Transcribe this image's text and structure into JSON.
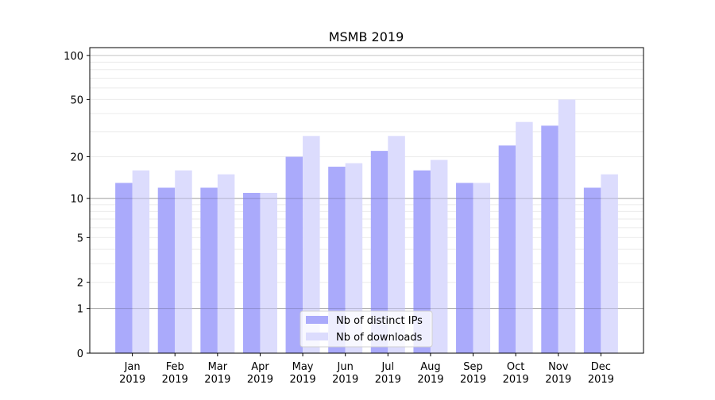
{
  "chart_data": {
    "type": "bar",
    "title": "MSMB 2019",
    "xlabel": "",
    "ylabel": "",
    "y_scale": "log(y+1)",
    "ylim": [
      0,
      113
    ],
    "yticks": [
      0,
      1,
      2,
      5,
      10,
      20,
      50,
      100
    ],
    "grid": true,
    "legend_position": "bottom-center",
    "categories": [
      "Jan\n2019",
      "Feb\n2019",
      "Mar\n2019",
      "Apr\n2019",
      "May\n2019",
      "Jun\n2019",
      "Jul\n2019",
      "Aug\n2019",
      "Sep\n2019",
      "Oct\n2019",
      "Nov\n2019",
      "Dec\n2019"
    ],
    "series": [
      {
        "name": "Nb of distinct IPs",
        "color": "#aaaafb",
        "values": [
          13,
          12,
          12,
          11,
          20,
          17,
          22,
          16,
          13,
          24,
          33,
          12
        ]
      },
      {
        "name": "Nb of downloads",
        "color": "#dcdcfd",
        "values": [
          16,
          16,
          15,
          11,
          28,
          18,
          28,
          19,
          13,
          35,
          50,
          15
        ]
      }
    ]
  }
}
